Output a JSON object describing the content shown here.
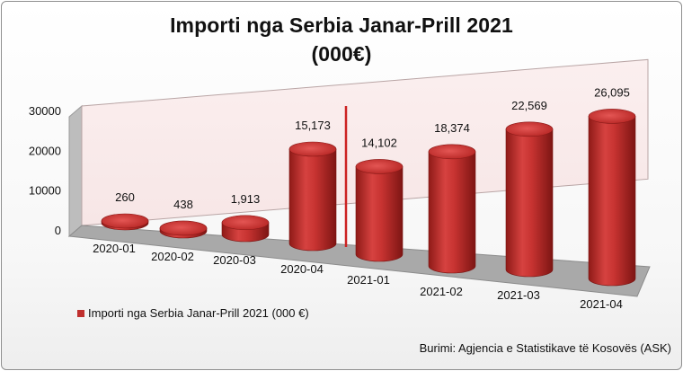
{
  "chart_data": {
    "type": "bar",
    "style": "3d-cylinder",
    "title": "Importi nga Serbia Janar-Prill 2021",
    "subtitle": "(000€)",
    "categories": [
      "2020-01",
      "2020-02",
      "2020-03",
      "2020-04",
      "2021-01",
      "2021-02",
      "2021-03",
      "2021-04"
    ],
    "series": [
      {
        "name": "Importi nga Serbia Janar-Prill 2021 (000 €)",
        "values": [
          260,
          438,
          1913,
          15173,
          14102,
          18374,
          22569,
          26095
        ],
        "labels": [
          "260",
          "438",
          "1,913",
          "15,173",
          "14,102",
          "18,374",
          "22,569",
          "26,095"
        ],
        "color": "#c0302e"
      }
    ],
    "y_ticks": [
      "0",
      "10000",
      "20000",
      "30000"
    ],
    "ylim": [
      0,
      30000
    ],
    "xlabel": "",
    "ylabel": "",
    "legend_position": "bottom-left",
    "divider_after_category": "2020-04",
    "divider_color": "#cc2222",
    "wall_color": "#f7e6e6",
    "floor_color": "#a9a9a9"
  },
  "source": "Burimi: Agjencia e Statistikave të Kosovës (ASK)"
}
